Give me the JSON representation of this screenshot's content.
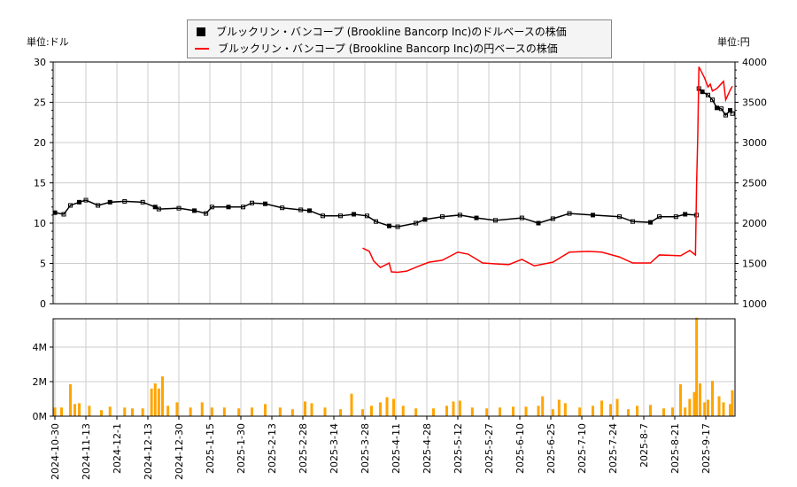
{
  "units": {
    "left": "単位:ドル",
    "right": "単位:円"
  },
  "legend": {
    "usd": "ブルックリン・バンコープ (Brookline Bancorp Inc)のドルベースの株価",
    "jpy": "ブルックリン・バンコープ (Brookline Bancorp Inc)の円ベースの株価"
  },
  "colors": {
    "usd": "#000000",
    "jpy": "#ff0000",
    "volume": "#ffa500",
    "grid": "#cccccc"
  },
  "chart_data": [
    {
      "type": "line",
      "grid": true,
      "legend_position": "top-center",
      "x_ticks": [
        "2024-10-30",
        "2024-11-13",
        "2024-12-1",
        "2024-12-13",
        "2024-12-30",
        "2025-1-15",
        "2025-1-30",
        "2025-2-13",
        "2025-2-28",
        "2025-3-14",
        "2025-3-28",
        "2025-4-11",
        "2025-4-28",
        "2025-5-12",
        "2025-5-27",
        "2025-6-10",
        "2025-6-25",
        "2025-7-10",
        "2025-7-24",
        "2025-8-7",
        "2025-8-21",
        "2025-9-17"
      ],
      "y_left": {
        "range": [
          0,
          30
        ],
        "ticks": [
          0,
          5,
          10,
          15,
          20,
          25,
          30
        ]
      },
      "y_right": {
        "range": [
          1000,
          4000
        ],
        "ticks": [
          1000,
          1500,
          2000,
          2500,
          3000,
          3500,
          4000
        ]
      },
      "series": [
        {
          "name": "ブルックリン・バンコープ (Brookline Bancorp Inc)のドルベースの株価",
          "axis": "left",
          "style": "candle",
          "points": [
            [
              "2024-10-30",
              11.3
            ],
            [
              "2024-11-03",
              11.1
            ],
            [
              "2024-11-06",
              12.2
            ],
            [
              "2024-11-10",
              12.6
            ],
            [
              "2024-11-13",
              12.85
            ],
            [
              "2024-11-20",
              12.2
            ],
            [
              "2024-11-27",
              12.6
            ],
            [
              "2024-12-04",
              12.7
            ],
            [
              "2024-12-11",
              12.6
            ],
            [
              "2024-12-17",
              12.0
            ],
            [
              "2024-12-19",
              11.75
            ],
            [
              "2024-12-30",
              11.85
            ],
            [
              "2025-01-07",
              11.55
            ],
            [
              "2025-01-13",
              11.2
            ],
            [
              "2025-01-16",
              12.0
            ],
            [
              "2025-01-24",
              12.0
            ],
            [
              "2025-01-31",
              12.0
            ],
            [
              "2025-02-04",
              12.5
            ],
            [
              "2025-02-10",
              12.4
            ],
            [
              "2025-02-18",
              11.9
            ],
            [
              "2025-02-27",
              11.65
            ],
            [
              "2025-03-03",
              11.55
            ],
            [
              "2025-03-09",
              10.9
            ],
            [
              "2025-03-17",
              10.9
            ],
            [
              "2025-03-23",
              11.1
            ],
            [
              "2025-03-29",
              10.9
            ],
            [
              "2025-04-02",
              10.2
            ],
            [
              "2025-04-08",
              9.65
            ],
            [
              "2025-04-12",
              9.55
            ],
            [
              "2025-04-22",
              10.0
            ],
            [
              "2025-04-27",
              10.45
            ],
            [
              "2025-05-05",
              10.8
            ],
            [
              "2025-05-13",
              11.0
            ],
            [
              "2025-05-21",
              10.65
            ],
            [
              "2025-05-30",
              10.35
            ],
            [
              "2025-06-11",
              10.65
            ],
            [
              "2025-06-19",
              10.0
            ],
            [
              "2025-06-26",
              10.55
            ],
            [
              "2025-07-04",
              11.2
            ],
            [
              "2025-07-15",
              11.0
            ],
            [
              "2025-07-27",
              10.8
            ],
            [
              "2025-08-02",
              10.2
            ],
            [
              "2025-08-10",
              10.1
            ],
            [
              "2025-08-14",
              10.8
            ],
            [
              "2025-08-22",
              10.8
            ],
            [
              "2025-08-30",
              11.1
            ],
            [
              "2025-09-09",
              11.0
            ],
            [
              "2025-09-11",
              26.7
            ],
            [
              "2025-09-14",
              26.3
            ],
            [
              "2025-09-18",
              25.9
            ],
            [
              "2025-09-20",
              25.3
            ],
            [
              "2025-09-22",
              24.3
            ],
            [
              "2025-09-24",
              24.2
            ],
            [
              "2025-09-26",
              23.4
            ],
            [
              "2025-09-28",
              24.0
            ],
            [
              "2025-09-29",
              23.6
            ]
          ]
        },
        {
          "name": "ブルックリン・バンコープ (Brookline Bancorp Inc)の円ベースの株価",
          "axis": "right",
          "style": "line",
          "points": [
            [
              "2025-03-27",
              1690
            ],
            [
              "2025-03-30",
              1650
            ],
            [
              "2025-04-01",
              1530
            ],
            [
              "2025-04-04",
              1450
            ],
            [
              "2025-04-08",
              1505
            ],
            [
              "2025-04-09",
              1395
            ],
            [
              "2025-04-12",
              1390
            ],
            [
              "2025-04-17",
              1405
            ],
            [
              "2025-04-24",
              1470
            ],
            [
              "2025-04-29",
              1515
            ],
            [
              "2025-05-05",
              1540
            ],
            [
              "2025-05-12",
              1640
            ],
            [
              "2025-05-17",
              1615
            ],
            [
              "2025-05-24",
              1505
            ],
            [
              "2025-05-30",
              1495
            ],
            [
              "2025-06-05",
              1485
            ],
            [
              "2025-06-11",
              1550
            ],
            [
              "2025-06-17",
              1470
            ],
            [
              "2025-06-26",
              1515
            ],
            [
              "2025-07-04",
              1640
            ],
            [
              "2025-07-13",
              1650
            ],
            [
              "2025-07-19",
              1640
            ],
            [
              "2025-07-27",
              1580
            ],
            [
              "2025-08-02",
              1505
            ],
            [
              "2025-08-10",
              1505
            ],
            [
              "2025-08-14",
              1605
            ],
            [
              "2025-08-26",
              1595
            ],
            [
              "2025-09-03",
              1660
            ],
            [
              "2025-09-08",
              1605
            ],
            [
              "2025-09-09",
              2480
            ],
            [
              "2025-09-10",
              3070
            ],
            [
              "2025-09-11",
              3940
            ],
            [
              "2025-09-16",
              3800
            ],
            [
              "2025-09-18",
              3690
            ],
            [
              "2025-09-19",
              3725
            ],
            [
              "2025-09-20",
              3640
            ],
            [
              "2025-09-22",
              3670
            ],
            [
              "2025-09-25",
              3760
            ],
            [
              "2025-09-26",
              3530
            ],
            [
              "2025-09-28",
              3650
            ],
            [
              "2025-09-29",
              3700
            ]
          ]
        }
      ]
    },
    {
      "type": "bar",
      "grid": true,
      "y": {
        "range": [
          0,
          5.64
        ],
        "ticks": [
          0,
          2,
          4
        ],
        "tick_labels": [
          "0M",
          "2M",
          "4M"
        ]
      },
      "series": [
        {
          "points": [
            [
              "2024-10-30",
              0.5
            ],
            [
              "2024-11-02",
              0.5
            ],
            [
              "2024-11-06",
              1.85
            ],
            [
              "2024-11-08",
              0.7
            ],
            [
              "2024-11-10",
              0.75
            ],
            [
              "2024-11-15",
              0.6
            ],
            [
              "2024-11-22",
              0.35
            ],
            [
              "2024-11-27",
              0.55
            ],
            [
              "2024-12-04",
              0.5
            ],
            [
              "2024-12-07",
              0.45
            ],
            [
              "2024-12-11",
              0.45
            ],
            [
              "2024-12-15",
              1.6
            ],
            [
              "2024-12-17",
              1.9
            ],
            [
              "2024-12-19",
              1.6
            ],
            [
              "2024-12-21",
              2.3
            ],
            [
              "2024-12-24",
              0.6
            ],
            [
              "2024-12-29",
              0.8
            ],
            [
              "2025-01-05",
              0.5
            ],
            [
              "2025-01-11",
              0.8
            ],
            [
              "2025-01-16",
              0.5
            ],
            [
              "2025-01-22",
              0.5
            ],
            [
              "2025-01-29",
              0.45
            ],
            [
              "2025-02-04",
              0.5
            ],
            [
              "2025-02-10",
              0.7
            ],
            [
              "2025-02-17",
              0.5
            ],
            [
              "2025-02-23",
              0.4
            ],
            [
              "2025-03-01",
              0.85
            ],
            [
              "2025-03-04",
              0.75
            ],
            [
              "2025-03-10",
              0.5
            ],
            [
              "2025-03-17",
              0.4
            ],
            [
              "2025-03-22",
              1.3
            ],
            [
              "2025-03-27",
              0.4
            ],
            [
              "2025-03-31",
              0.6
            ],
            [
              "2025-04-04",
              0.8
            ],
            [
              "2025-04-07",
              1.1
            ],
            [
              "2025-04-10",
              1.0
            ],
            [
              "2025-04-15",
              0.6
            ],
            [
              "2025-04-22",
              0.45
            ],
            [
              "2025-05-01",
              0.45
            ],
            [
              "2025-05-07",
              0.6
            ],
            [
              "2025-05-10",
              0.85
            ],
            [
              "2025-05-13",
              0.9
            ],
            [
              "2025-05-19",
              0.5
            ],
            [
              "2025-05-26",
              0.45
            ],
            [
              "2025-06-01",
              0.5
            ],
            [
              "2025-06-07",
              0.55
            ],
            [
              "2025-06-13",
              0.55
            ],
            [
              "2025-06-19",
              0.6
            ],
            [
              "2025-06-21",
              1.15
            ],
            [
              "2025-06-26",
              0.4
            ],
            [
              "2025-06-29",
              0.95
            ],
            [
              "2025-07-02",
              0.75
            ],
            [
              "2025-07-09",
              0.5
            ],
            [
              "2025-07-15",
              0.6
            ],
            [
              "2025-07-19",
              0.9
            ],
            [
              "2025-07-23",
              0.7
            ],
            [
              "2025-07-26",
              1.0
            ],
            [
              "2025-07-31",
              0.4
            ],
            [
              "2025-08-04",
              0.6
            ],
            [
              "2025-08-10",
              0.65
            ],
            [
              "2025-08-16",
              0.45
            ],
            [
              "2025-08-20",
              0.5
            ],
            [
              "2025-08-26",
              1.85
            ],
            [
              "2025-08-30",
              0.5
            ],
            [
              "2025-09-03",
              1.0
            ],
            [
              "2025-09-07",
              1.4
            ],
            [
              "2025-09-09",
              5.7
            ],
            [
              "2025-09-12",
              1.9
            ],
            [
              "2025-09-16",
              0.8
            ],
            [
              "2025-09-18",
              0.95
            ],
            [
              "2025-09-20",
              2.05
            ],
            [
              "2025-09-23",
              1.15
            ],
            [
              "2025-09-25",
              0.8
            ],
            [
              "2025-09-28",
              0.7
            ],
            [
              "2025-09-29",
              1.5
            ]
          ]
        }
      ]
    }
  ]
}
